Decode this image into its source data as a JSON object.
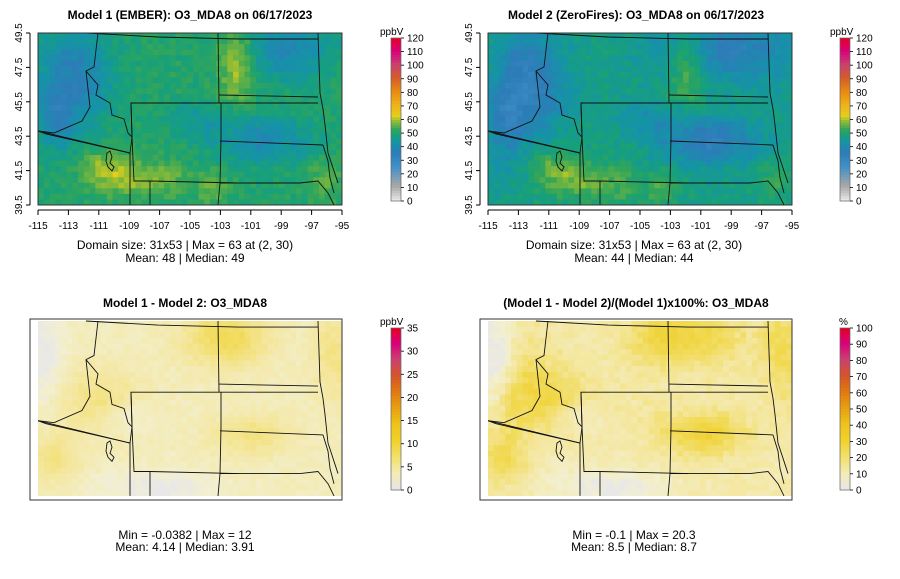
{
  "panels": [
    {
      "id": "m1",
      "title": "Model 1 (EMBER): O3_MDA8 on 06/17/2023",
      "unit": "ppbV",
      "colorbar_ticks": [
        "0",
        "10",
        "20",
        "30",
        "40",
        "50",
        "60",
        "70",
        "80",
        "90",
        "100",
        "110",
        "120"
      ],
      "colorbar_range": [
        0,
        120
      ],
      "scale": "conc",
      "has_axes": true,
      "x_ticks": [
        "-115",
        "-113",
        "-111",
        "-109",
        "-107",
        "-105",
        "-103",
        "-101",
        "-99",
        "-97",
        "-95"
      ],
      "y_ticks": [
        "39.5",
        "41.5",
        "43.5",
        "45.5",
        "47.5",
        "49.5"
      ],
      "stats": [
        "Domain size: 31x53 | Max = 63 at (2, 30)",
        "Mean: 48 |  Median: 49"
      ],
      "field": "m1"
    },
    {
      "id": "m2",
      "title": "Model 2 (ZeroFires): O3_MDA8 on 06/17/2023",
      "unit": "ppbV",
      "colorbar_ticks": [
        "0",
        "10",
        "20",
        "30",
        "40",
        "50",
        "60",
        "70",
        "80",
        "90",
        "100",
        "110",
        "120"
      ],
      "colorbar_range": [
        0,
        120
      ],
      "scale": "conc",
      "has_axes": true,
      "x_ticks": [
        "-115",
        "-113",
        "-111",
        "-109",
        "-107",
        "-105",
        "-103",
        "-101",
        "-99",
        "-97",
        "-95"
      ],
      "y_ticks": [
        "39.5",
        "41.5",
        "43.5",
        "45.5",
        "47.5",
        "49.5"
      ],
      "stats": [
        "Domain size: 31x53 | Max = 63 at (2, 30)",
        "Mean: 44 |  Median: 44"
      ],
      "field": "m2"
    },
    {
      "id": "diff",
      "title": "Model 1 - Model 2: O3_MDA8",
      "unit": "ppbV",
      "colorbar_ticks": [
        "0",
        "5",
        "10",
        "15",
        "20",
        "25",
        "30",
        "35"
      ],
      "colorbar_range": [
        0,
        35
      ],
      "scale": "diff",
      "has_axes": false,
      "x_ticks": [],
      "y_ticks": [],
      "stats": [
        "Min = -0.0382 | Max = 12",
        "Mean: 4.14 |  Median: 3.91"
      ],
      "field": "diff"
    },
    {
      "id": "pct",
      "title": "(Model 1 - Model 2)/(Model 1)x100%: O3_MDA8",
      "unit": "%",
      "colorbar_ticks": [
        "0",
        "10",
        "20",
        "30",
        "40",
        "50",
        "60",
        "70",
        "80",
        "90",
        "100"
      ],
      "colorbar_range": [
        0,
        100
      ],
      "scale": "diff",
      "has_axes": false,
      "x_ticks": [],
      "y_ticks": [],
      "stats": [
        "Min = -0.1 | Max = 20.3",
        "Mean: 8.5 |  Median: 8.7"
      ],
      "field": "pct"
    }
  ],
  "chart_data": {
    "type": "heatmap",
    "variable": "O3_MDA8",
    "date": "06/17/2023",
    "grid": "31x53",
    "lon_range": [
      -115,
      -95
    ],
    "lat_range": [
      39.5,
      49.5
    ],
    "models": [
      "Model 1 (EMBER)",
      "Model 2 (ZeroFires)"
    ],
    "colors": {
      "conc": [
        "#e6e6e6",
        "#a9a9a9",
        "#2c7bb6",
        "#1f8fb0",
        "#1a9e87",
        "#3aa35a",
        "#8bbd3c",
        "#e6d21a",
        "#f0b21a",
        "#e88a10",
        "#d65c2a",
        "#c94070",
        "#d9007a",
        "#e8001c"
      ],
      "diff": [
        "#e6e6e6",
        "#f5ebb4",
        "#f2e06a",
        "#f0d22a",
        "#eec41a",
        "#e8a010",
        "#e07a10",
        "#d6542a",
        "#cc4070",
        "#d9007a",
        "#e8001c"
      ]
    }
  }
}
